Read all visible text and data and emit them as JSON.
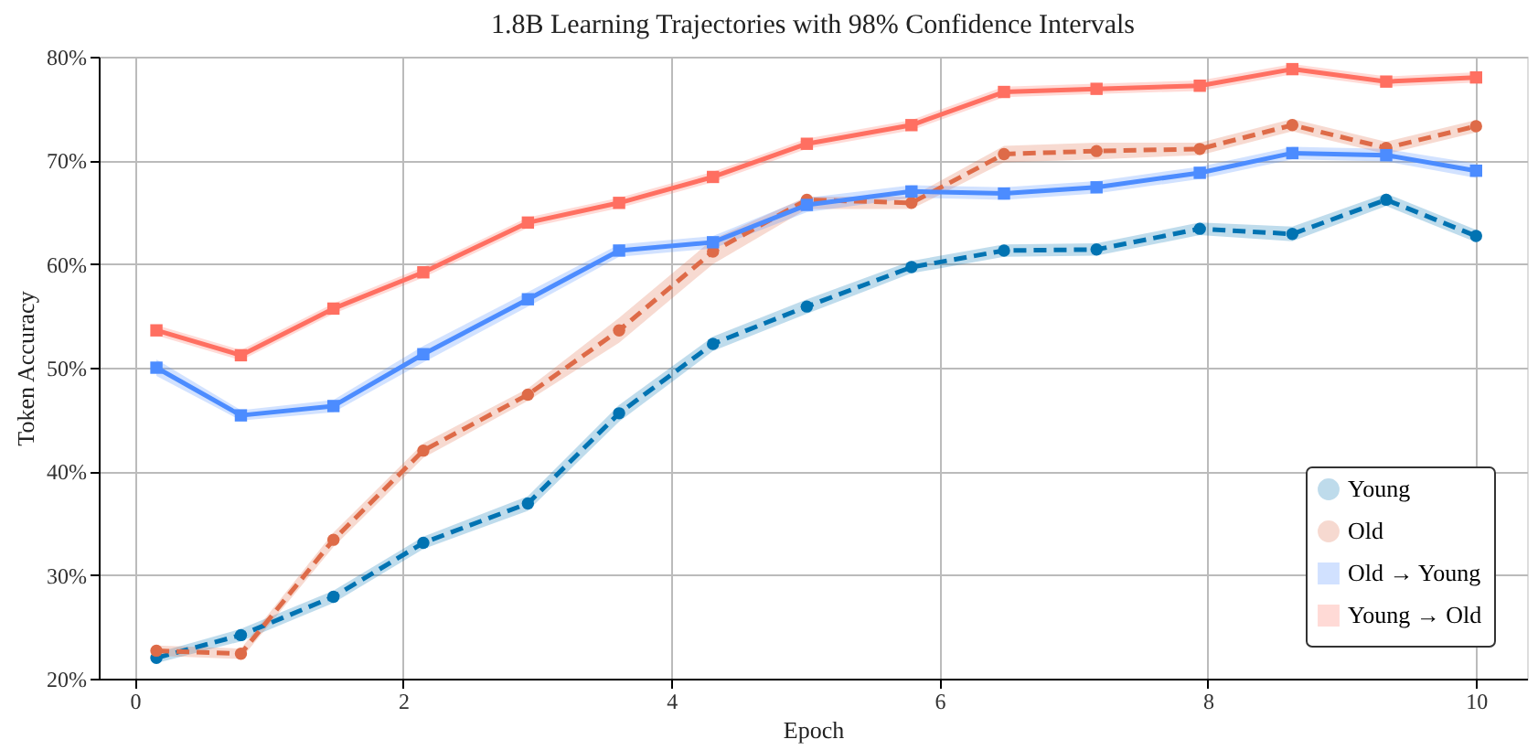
{
  "chart_data": {
    "type": "line",
    "title": "1.8B Learning Trajectories with 98% Confidence Intervals",
    "xlabel": "Epoch",
    "ylabel": "Token Accuracy",
    "x": [
      0.16,
      0.79,
      1.48,
      2.15,
      2.93,
      3.61,
      4.31,
      5.01,
      5.79,
      6.48,
      7.17,
      7.94,
      8.63,
      9.33,
      10.0
    ],
    "series": [
      {
        "name": "Young",
        "color": "#0173b2",
        "line_style": "dashed",
        "marker": "circle",
        "values": [
          22.0,
          24.2,
          27.9,
          33.1,
          36.9,
          45.6,
          52.3,
          55.9,
          59.7,
          61.3,
          61.4,
          63.4,
          62.9,
          66.2,
          62.7
        ],
        "lower": [
          21.5,
          23.6,
          27.3,
          32.5,
          36.2,
          44.8,
          51.6,
          55.2,
          59.1,
          60.7,
          60.8,
          62.8,
          62.2,
          65.6,
          62.1
        ],
        "upper": [
          22.5,
          24.8,
          28.5,
          33.7,
          37.6,
          46.4,
          53.0,
          56.6,
          60.3,
          61.9,
          62.0,
          64.0,
          63.6,
          66.8,
          63.3
        ]
      },
      {
        "name": "Old",
        "color": "#de6b48",
        "line_style": "dashed",
        "marker": "circle",
        "values": [
          22.7,
          22.4,
          33.4,
          42.0,
          47.4,
          53.6,
          61.2,
          66.2,
          65.9,
          70.6,
          70.9,
          71.1,
          73.4,
          71.2,
          73.3
        ],
        "lower": [
          22.2,
          21.9,
          32.7,
          41.3,
          46.8,
          52.4,
          60.0,
          65.3,
          65.3,
          69.8,
          70.1,
          70.5,
          72.8,
          70.6,
          72.7
        ],
        "upper": [
          23.2,
          22.9,
          34.1,
          42.7,
          48.0,
          54.8,
          62.4,
          66.5,
          66.5,
          71.4,
          71.7,
          71.7,
          74.0,
          71.8,
          73.9
        ]
      },
      {
        "name": "Old → Young",
        "color": "#4c8cff",
        "line_style": "solid",
        "marker": "square",
        "values": [
          50.0,
          45.4,
          46.3,
          51.3,
          56.6,
          61.3,
          62.1,
          65.7,
          67.0,
          66.8,
          67.4,
          68.8,
          70.7,
          70.5,
          69.0
        ],
        "lower": [
          49.2,
          44.9,
          45.7,
          50.5,
          55.9,
          60.7,
          61.5,
          65.0,
          66.4,
          66.2,
          66.8,
          68.2,
          70.1,
          69.9,
          68.3
        ],
        "upper": [
          50.8,
          45.9,
          46.9,
          52.1,
          57.3,
          61.9,
          62.7,
          66.4,
          67.6,
          67.4,
          68.0,
          69.4,
          71.3,
          71.1,
          69.7
        ]
      },
      {
        "name": "Young → Old",
        "color": "#ff6f61",
        "line_style": "solid",
        "marker": "square",
        "values": [
          53.6,
          51.2,
          55.7,
          59.2,
          64.0,
          65.9,
          68.4,
          71.6,
          73.4,
          76.6,
          76.9,
          77.2,
          78.8,
          77.6,
          78.0
        ],
        "lower": [
          53.1,
          50.7,
          55.2,
          58.7,
          63.5,
          65.4,
          67.9,
          71.1,
          72.9,
          76.1,
          76.4,
          76.7,
          78.3,
          77.1,
          77.5
        ],
        "upper": [
          54.1,
          51.7,
          56.2,
          59.7,
          64.5,
          66.4,
          68.9,
          72.1,
          73.9,
          77.1,
          77.4,
          77.7,
          79.3,
          78.1,
          78.5
        ]
      }
    ],
    "xlim": [
      -0.27,
      10.38
    ],
    "xticks": [
      0,
      2,
      4,
      6,
      8,
      10
    ],
    "ylim": [
      20,
      80
    ],
    "yticks": [
      {
        "value": 20,
        "label": "20%"
      },
      {
        "value": 30,
        "label": "30%"
      },
      {
        "value": 40,
        "label": "40%"
      },
      {
        "value": 50,
        "label": "50%"
      },
      {
        "value": 60,
        "label": "60%"
      },
      {
        "value": 70,
        "label": "70%"
      },
      {
        "value": 80,
        "label": "80%"
      }
    ],
    "grid": true,
    "legend": "bottom right"
  }
}
